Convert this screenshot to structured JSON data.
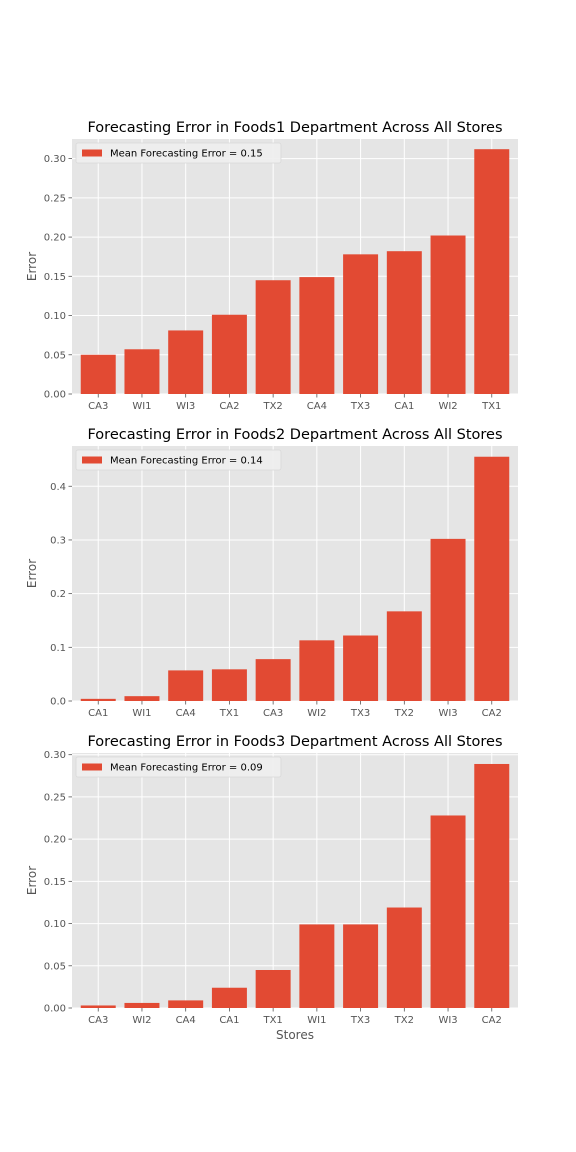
{
  "colors": {
    "bar": "#e24a33",
    "panel": "#e5e5e5",
    "grid": "#ffffff",
    "legend_bg": "#eeeeee",
    "tick": "#555555"
  },
  "chart_data": [
    {
      "type": "bar",
      "title": "Forecasting Error in Foods1 Department Across All Stores",
      "xlabel": "",
      "ylabel": "Error",
      "legend": "Mean Forecasting Error = 0.15",
      "legend_position": "top-left",
      "grid": true,
      "ylim": [
        0,
        0.325
      ],
      "yticks": [
        0,
        0.05,
        0.1,
        0.15,
        0.2,
        0.25,
        0.3
      ],
      "ytick_labels": [
        "0.00",
        "0.05",
        "0.10",
        "0.15",
        "0.20",
        "0.25",
        "0.30"
      ],
      "categories": [
        "CA3",
        "WI1",
        "WI3",
        "CA2",
        "TX2",
        "CA4",
        "TX3",
        "CA1",
        "WI2",
        "TX1"
      ],
      "values": [
        0.05,
        0.057,
        0.081,
        0.101,
        0.145,
        0.149,
        0.178,
        0.182,
        0.202,
        0.312
      ]
    },
    {
      "type": "bar",
      "title": "Forecasting Error in Foods2 Department Across All Stores",
      "xlabel": "",
      "ylabel": "Error",
      "legend": "Mean Forecasting Error = 0.14",
      "legend_position": "top-left",
      "grid": true,
      "ylim": [
        0,
        0.475
      ],
      "yticks": [
        0,
        0.1,
        0.2,
        0.3,
        0.4
      ],
      "ytick_labels": [
        "0.0",
        "0.1",
        "0.2",
        "0.3",
        "0.4"
      ],
      "categories": [
        "CA1",
        "WI1",
        "CA4",
        "TX1",
        "CA3",
        "WI2",
        "TX3",
        "TX2",
        "WI3",
        "CA2"
      ],
      "values": [
        0.004,
        0.009,
        0.057,
        0.059,
        0.078,
        0.113,
        0.122,
        0.167,
        0.302,
        0.455
      ]
    },
    {
      "type": "bar",
      "title": "Forecasting Error in Foods3 Department Across All Stores",
      "xlabel": "Stores",
      "ylabel": "Error",
      "legend": "Mean Forecasting Error = 0.09",
      "legend_position": "top-left",
      "grid": true,
      "ylim": [
        0,
        0.302
      ],
      "yticks": [
        0,
        0.05,
        0.1,
        0.15,
        0.2,
        0.25,
        0.3
      ],
      "ytick_labels": [
        "0.00",
        "0.05",
        "0.10",
        "0.15",
        "0.20",
        "0.25",
        "0.30"
      ],
      "categories": [
        "CA3",
        "WI2",
        "CA4",
        "CA1",
        "TX1",
        "WI1",
        "TX3",
        "TX2",
        "WI3",
        "CA2"
      ],
      "values": [
        0.003,
        0.006,
        0.009,
        0.024,
        0.045,
        0.099,
        0.099,
        0.119,
        0.228,
        0.289
      ]
    }
  ]
}
